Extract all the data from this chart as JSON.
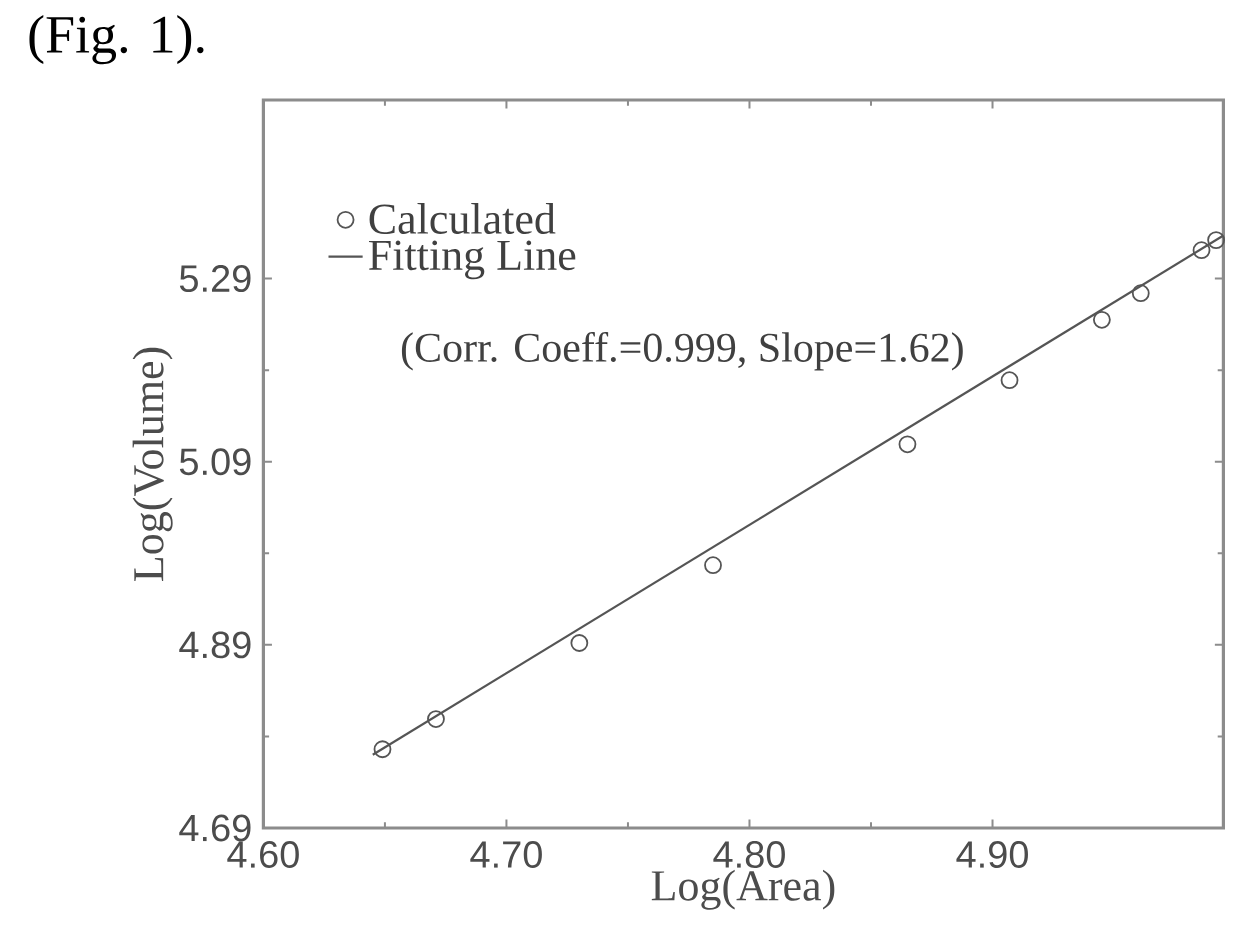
{
  "chart_data": {
    "type": "scatter",
    "xlabel": "Log(Area)",
    "ylabel": "Log(Volume)",
    "annotations": [
      "(Fig. 1).",
      "(Corr. Coeff.=0.999, Slope=1.62)"
    ],
    "xlim": [
      4.6,
      4.995
    ],
    "xticks": [
      {
        "value": 4.6,
        "label": "4.60"
      },
      {
        "value": 4.7,
        "label": "4.70"
      },
      {
        "value": 4.8,
        "label": "4.80"
      },
      {
        "value": 4.9,
        "label": "4.90"
      }
    ],
    "ylim": [
      4.69,
      5.485
    ],
    "yticks": [
      4.69,
      4.89,
      5.09,
      5.29
    ],
    "legend": "top left",
    "marker": "circle",
    "grid": false,
    "series": [
      {
        "name": "Calculated",
        "color": "#555555",
        "x": [
          4.649,
          4.671,
          4.73,
          4.785,
          4.865,
          4.907,
          4.945,
          4.961,
          4.986,
          4.992
        ],
        "values": [
          4.776,
          4.809,
          4.892,
          4.977,
          5.109,
          5.179,
          5.245,
          5.274,
          5.321,
          5.332
        ]
      },
      {
        "name": "Fitting Line",
        "type": "line",
        "color": "#555555",
        "marker": "none",
        "line_style": "solid",
        "x": [
          4.645,
          4.995
        ],
        "values": [
          4.77,
          5.337
        ]
      }
    ]
  }
}
